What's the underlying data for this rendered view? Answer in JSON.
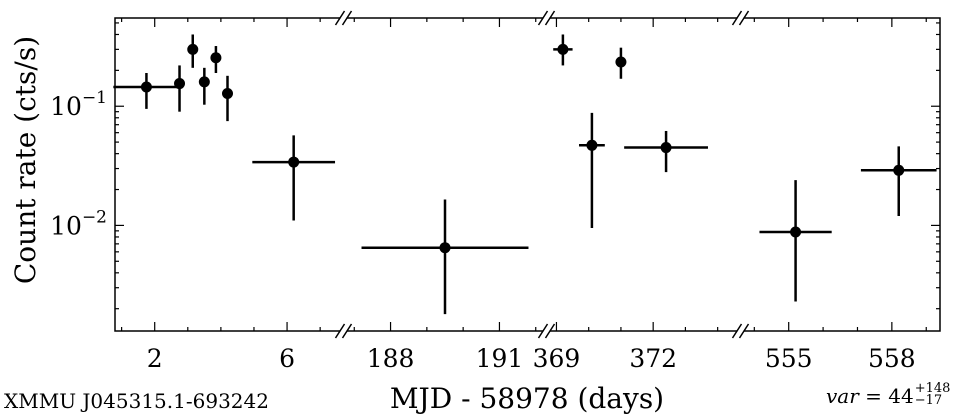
{
  "chart_data": {
    "type": "scatter",
    "title": "",
    "xlabel": "MJD - 58978 (days)",
    "ylabel": "Count rate (cts/s)",
    "y_scale": "log",
    "ylim": [
      0.0013,
      0.55
    ],
    "y_ticks": [
      {
        "value": 0.1,
        "base": "10",
        "exp": "−1"
      },
      {
        "value": 0.01,
        "base": "10",
        "exp": "−2"
      }
    ],
    "x_broken_axis": true,
    "grid": false,
    "segments": [
      {
        "xlim": [
          0.8,
          7.6
        ],
        "ticks": [
          2,
          6
        ]
      },
      {
        "xlim": [
          186.8,
          192.2
        ],
        "ticks": [
          188,
          191
        ]
      },
      {
        "xlim": [
          368.8,
          374.6
        ],
        "ticks": [
          369,
          372
        ]
      },
      {
        "xlim": [
          553.7,
          559.4
        ],
        "ticks": [
          555,
          558
        ]
      }
    ],
    "points": [
      {
        "seg": 0,
        "x": 1.75,
        "xerr": 1.0,
        "y": 0.145,
        "ylo": 0.095,
        "yhi": 0.19
      },
      {
        "seg": 0,
        "x": 2.75,
        "xerr": 0.15,
        "y": 0.155,
        "ylo": 0.09,
        "yhi": 0.22
      },
      {
        "seg": 0,
        "x": 3.15,
        "xerr": 0.1,
        "y": 0.3,
        "ylo": 0.21,
        "yhi": 0.4
      },
      {
        "seg": 0,
        "x": 3.5,
        "xerr": 0.1,
        "y": 0.16,
        "ylo": 0.103,
        "yhi": 0.21
      },
      {
        "seg": 0,
        "x": 3.85,
        "xerr": 0.1,
        "y": 0.255,
        "ylo": 0.19,
        "yhi": 0.32
      },
      {
        "seg": 0,
        "x": 4.2,
        "xerr": 0.1,
        "y": 0.128,
        "ylo": 0.075,
        "yhi": 0.18
      },
      {
        "seg": 0,
        "x": 6.2,
        "xerr": 1.25,
        "y": 0.034,
        "ylo": 0.011,
        "yhi": 0.057
      },
      {
        "seg": 1,
        "x": 189.5,
        "xerr": 2.3,
        "y": 0.0065,
        "ylo": 0.0018,
        "yhi": 0.0165
      },
      {
        "seg": 2,
        "x": 369.2,
        "xerr": 0.3,
        "y": 0.3,
        "ylo": 0.22,
        "yhi": 0.4
      },
      {
        "seg": 2,
        "x": 370.1,
        "xerr": 0.4,
        "y": 0.047,
        "ylo": 0.0095,
        "yhi": 0.088
      },
      {
        "seg": 2,
        "x": 371.0,
        "xerr": 0.05,
        "y": 0.235,
        "ylo": 0.17,
        "yhi": 0.31
      },
      {
        "seg": 2,
        "x": 372.4,
        "xerr": 1.3,
        "y": 0.045,
        "ylo": 0.028,
        "yhi": 0.062
      },
      {
        "seg": 3,
        "x": 555.2,
        "xerr": 1.05,
        "y": 0.0088,
        "ylo": 0.0023,
        "yhi": 0.024
      },
      {
        "seg": 3,
        "x": 558.2,
        "xerr": 1.1,
        "y": 0.029,
        "ylo": 0.012,
        "yhi": 0.046
      }
    ]
  },
  "footer": {
    "source": "XMMU J045315.1-693242",
    "var_label": "var",
    "var_value": "= 44",
    "var_plus": "+148",
    "var_minus": "−17"
  }
}
